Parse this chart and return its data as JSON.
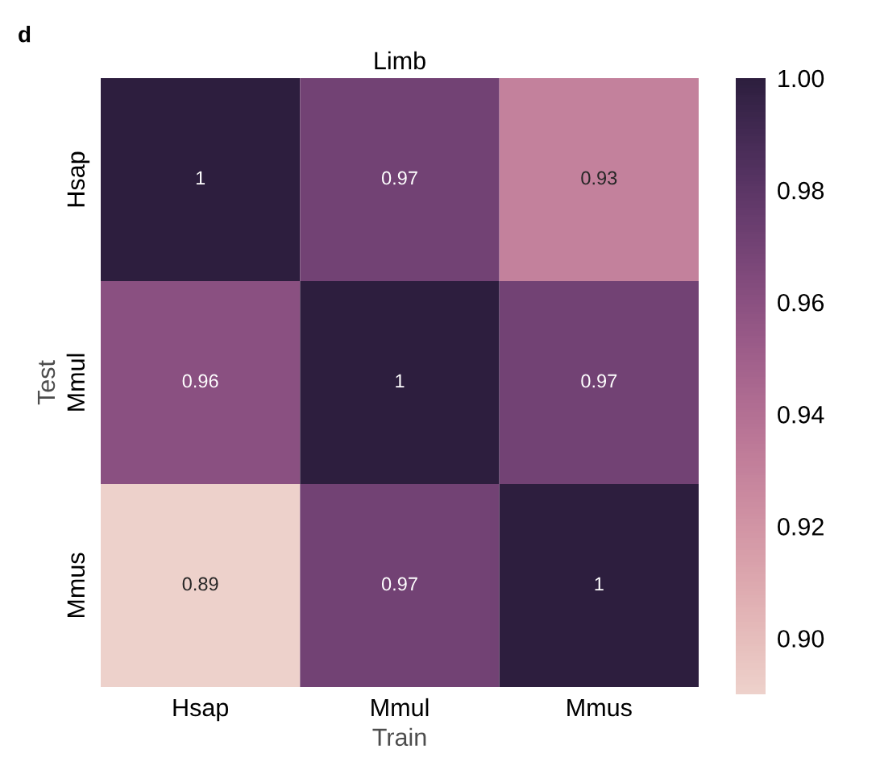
{
  "chart_data": {
    "type": "heatmap",
    "title": "Limb",
    "xlabel": "Train",
    "ylabel": "Test",
    "categories": [
      "Hsap",
      "Mmul",
      "Mmus"
    ],
    "y_categories": [
      "Hsap",
      "Mmul",
      "Mmus"
    ],
    "cells": [
      [
        1,
        0.97,
        0.93
      ],
      [
        0.96,
        1,
        0.97
      ],
      [
        0.89,
        0.97,
        1
      ]
    ],
    "data_labels": true,
    "clim": [
      0.89,
      1.0
    ],
    "cticks": [
      {
        "value": 0.9,
        "label": "0.90"
      },
      {
        "value": 0.92,
        "label": "0.92"
      },
      {
        "value": 0.94,
        "label": "0.94"
      },
      {
        "value": 0.96,
        "label": "0.96"
      },
      {
        "value": 0.98,
        "label": "0.98"
      },
      {
        "value": 1.0,
        "label": "1.00"
      }
    ],
    "annotations": [
      "d"
    ]
  }
}
